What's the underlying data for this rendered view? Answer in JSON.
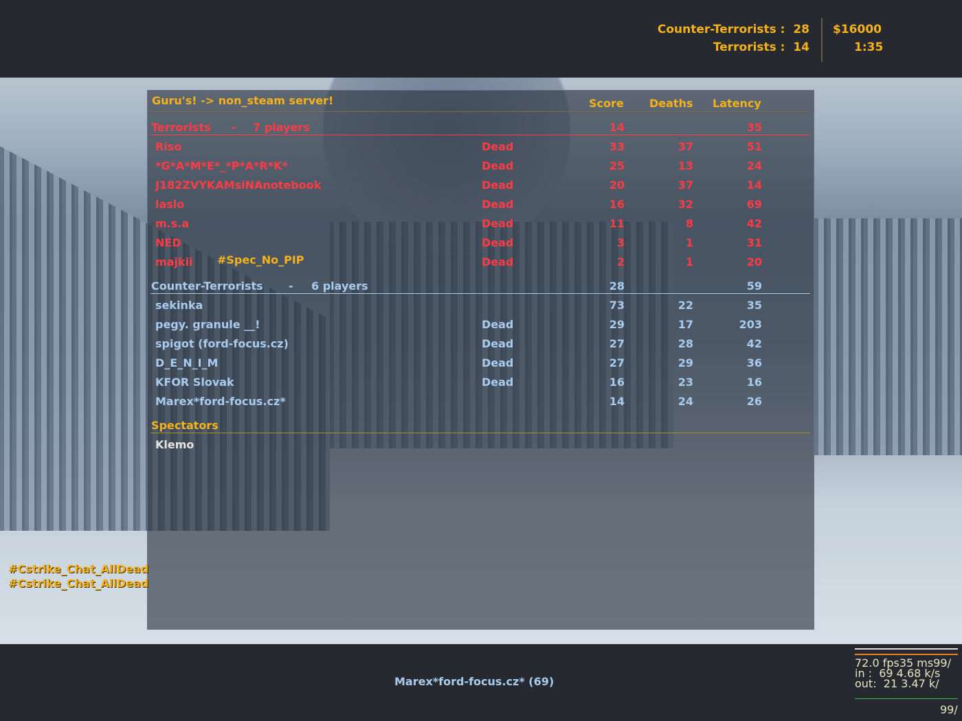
{
  "hud": {
    "ct_label": "Counter-Terrorists :",
    "ct_score": "28",
    "t_label": "Terrorists :",
    "t_score": "14",
    "money": "$16000",
    "timer": "1:35"
  },
  "scoreboard": {
    "server_name": "Guru's! -> non_steam server!",
    "columns": {
      "score": "Score",
      "deaths": "Deaths",
      "latency": "Latency"
    },
    "teams": [
      {
        "name": "Terrorists",
        "sep": "-",
        "count": "7 players",
        "score": "14",
        "latency": "35",
        "color": "#ff3c46",
        "players": [
          {
            "name": "Riso",
            "status": "Dead",
            "score": "33",
            "deaths": "37",
            "latency": "51"
          },
          {
            "name": "*G*A*M*E*_*P*A*R*K*",
            "status": "Dead",
            "score": "25",
            "deaths": "13",
            "latency": "24"
          },
          {
            "name": "J182ZVYKAMsiNAnotebook",
            "status": "Dead",
            "score": "20",
            "deaths": "37",
            "latency": "14"
          },
          {
            "name": "laslo",
            "status": "Dead",
            "score": "16",
            "deaths": "32",
            "latency": "69"
          },
          {
            "name": "m.s.a",
            "status": "Dead",
            "score": "11",
            "deaths": "8",
            "latency": "42"
          },
          {
            "name": "NED",
            "status": "Dead",
            "score": "3",
            "deaths": "1",
            "latency": "31"
          },
          {
            "name": "majkii",
            "tag": "#Spec_No_PIP",
            "status": "Dead",
            "score": "2",
            "deaths": "1",
            "latency": "20"
          }
        ]
      },
      {
        "name": "Counter-Terrorists",
        "sep": "-",
        "count": "6 players",
        "score": "28",
        "latency": "59",
        "color": "#a9cbee",
        "players": [
          {
            "name": "sekinka",
            "status": "",
            "score": "73",
            "deaths": "22",
            "latency": "35"
          },
          {
            "name": "pegy. granule __!",
            "status": "Dead",
            "score": "29",
            "deaths": "17",
            "latency": "203"
          },
          {
            "name": "spigot (ford-focus.cz)",
            "status": "Dead",
            "score": "27",
            "deaths": "28",
            "latency": "42"
          },
          {
            "name": "D_E_N_I_M",
            "status": "Dead",
            "score": "27",
            "deaths": "29",
            "latency": "36"
          },
          {
            "name": "KFOR Slovak",
            "status": "Dead",
            "score": "16",
            "deaths": "23",
            "latency": "16"
          },
          {
            "name": "Marex*ford-focus.cz*",
            "status": "",
            "score": "14",
            "deaths": "24",
            "latency": "26"
          }
        ]
      }
    ],
    "spectators": {
      "label": "Spectators",
      "players": [
        "Klemo"
      ]
    }
  },
  "chat": [
    "#Cstrike_Chat_AllDead",
    "#Cstrike_Chat_AllDead"
  ],
  "spectating": "Marex*ford-focus.cz* (69)",
  "netgraph": {
    "line1": "72.0 fps35 ms99/",
    "line2": "in :  69 4.68 k/s",
    "line3": "out:  21 3.47 k/",
    "line4": "99/"
  },
  "colors": {
    "orange": "#f5b21c",
    "terrorist": "#ff3c46",
    "ct": "#a9cbee"
  }
}
